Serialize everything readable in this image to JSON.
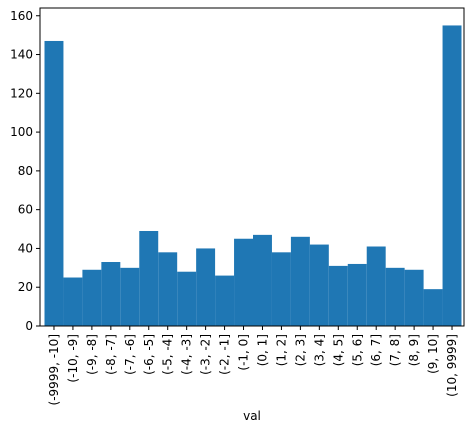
{
  "chart_data": {
    "type": "bar",
    "xlabel": "val",
    "ylabel": "",
    "ylim": [
      0,
      164
    ],
    "yticks": [
      0,
      20,
      40,
      60,
      80,
      100,
      120,
      140,
      160
    ],
    "bar_color": "#1f77b4",
    "grid": false,
    "categories": [
      "(-9999, -10]",
      "(-10, -9]",
      "(-9, -8]",
      "(-8, -7]",
      "(-7, -6]",
      "(-6, -5]",
      "(-5, -4]",
      "(-4, -3]",
      "(-3, -2]",
      "(-2, -1]",
      "(-1, 0]",
      "(0, 1]",
      "(1, 2]",
      "(2, 3]",
      "(3, 4]",
      "(4, 5]",
      "(5, 6]",
      "(6, 7]",
      "(7, 8]",
      "(8, 9]",
      "(9, 10]",
      "(10, 9999]"
    ],
    "values": [
      147,
      25,
      29,
      33,
      30,
      49,
      38,
      28,
      40,
      26,
      45,
      47,
      38,
      46,
      42,
      31,
      32,
      41,
      30,
      29,
      19,
      155
    ]
  }
}
